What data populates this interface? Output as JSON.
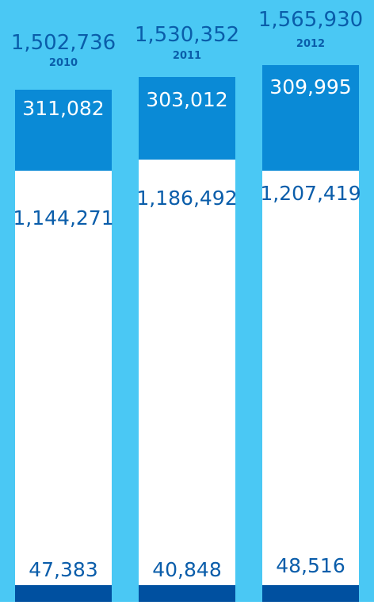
{
  "chart_data": {
    "type": "bar",
    "stacked": true,
    "categories": [
      "2010",
      "2011",
      "2012"
    ],
    "totals": [
      "1,502,736",
      "1,530,352",
      "1,565,930"
    ],
    "series": [
      {
        "values": [
          47383,
          40848,
          48516
        ],
        "labels": [
          "47,383",
          "40,848",
          "48,516"
        ],
        "color": "#0050A0"
      },
      {
        "values": [
          1144271,
          1186492,
          1207419
        ],
        "labels": [
          "1,144,271",
          "1,186,492",
          "1,207,419"
        ],
        "color": "#FFFFFF"
      },
      {
        "values": [
          311082,
          303012,
          309995
        ],
        "labels": [
          "311,082",
          "303,012",
          "309,995"
        ],
        "color": "#0A8AD6"
      }
    ],
    "colors": {
      "background": "#4AC8F4",
      "label_text": "#0A5DAA"
    }
  }
}
